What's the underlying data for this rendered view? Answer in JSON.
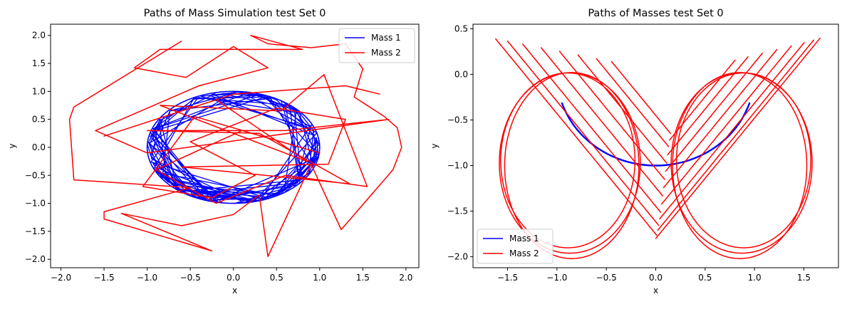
{
  "chart_data": [
    {
      "type": "line",
      "title": "Paths of Mass Simulation test Set 0",
      "xlabel": "x",
      "ylabel": "y",
      "xlim": [
        -2.12,
        2.15
      ],
      "ylim": [
        -2.15,
        2.2
      ],
      "xticks": [
        "-2.0",
        "-1.5",
        "-1.0",
        "-0.5",
        "0.0",
        "0.5",
        "1.0",
        "1.5",
        "2.0"
      ],
      "yticks": [
        "-2.0",
        "-1.5",
        "-1.0",
        "-0.5",
        "0.0",
        "0.5",
        "1.0",
        "1.5",
        "2.0"
      ],
      "legend": "top-right",
      "grid": false,
      "series": [
        {
          "name": "Mass 1",
          "color": "#0000ff",
          "style": "chaotic-unit-circle",
          "points": [
            [
              0,
              1
            ],
            [
              0.98,
              0.2
            ],
            [
              0.87,
              -0.5
            ],
            [
              0,
              -1
            ],
            [
              -0.87,
              -0.5
            ],
            [
              -0.98,
              0.2
            ],
            [
              0,
              1
            ],
            [
              0.6,
              -0.8
            ],
            [
              -0.95,
              0.3
            ],
            [
              0.95,
              0.3
            ],
            [
              -0.6,
              -0.8
            ],
            [
              0,
              1
            ]
          ]
        },
        {
          "name": "Mass 2",
          "color": "#ff0000",
          "style": "chaotic",
          "points": [
            [
              -0.6,
              1.9
            ],
            [
              -1.85,
              0.72
            ],
            [
              -1.9,
              0.5
            ],
            [
              -1.85,
              -0.58
            ],
            [
              -0.5,
              -0.72
            ],
            [
              -1.5,
              -1.15
            ],
            [
              -1.5,
              -1.28
            ],
            [
              -0.25,
              -1.85
            ],
            [
              -1.3,
              -1.18
            ],
            [
              -0.6,
              -1.4
            ],
            [
              0.0,
              -1.2
            ],
            [
              0.3,
              -0.85
            ],
            [
              0.4,
              -1.95
            ],
            [
              0.9,
              -0.3
            ],
            [
              1.25,
              -1.47
            ],
            [
              1.85,
              -0.4
            ],
            [
              1.95,
              0.0
            ],
            [
              1.9,
              0.35
            ],
            [
              1.75,
              0.55
            ],
            [
              1.4,
              0.9
            ],
            [
              1.5,
              1.4
            ],
            [
              1.3,
              1.85
            ],
            [
              0.9,
              1.78
            ],
            [
              0.4,
              1.85
            ],
            [
              0.2,
              2.0
            ],
            [
              0.8,
              1.75
            ],
            [
              -0.85,
              1.75
            ],
            [
              -1.15,
              1.42
            ],
            [
              -0.55,
              1.25
            ],
            [
              0.0,
              1.8
            ],
            [
              0.4,
              1.42
            ],
            [
              -0.4,
              1.1
            ],
            [
              -1.6,
              0.3
            ],
            [
              -1.0,
              -0.1
            ],
            [
              1.8,
              0.5
            ],
            [
              0.6,
              0.3
            ],
            [
              -1.0,
              0.3
            ],
            [
              0.3,
              0.25
            ],
            [
              1.35,
              -0.65
            ],
            [
              -0.6,
              -0.35
            ],
            [
              1.1,
              -0.3
            ],
            [
              1.3,
              0.5
            ],
            [
              0.5,
              0.7
            ],
            [
              -0.5,
              0.1
            ],
            [
              0.25,
              -0.5
            ],
            [
              -0.25,
              -0.9
            ],
            [
              -1.05,
              -0.7
            ],
            [
              -0.45,
              0.55
            ],
            [
              1.0,
              -0.1
            ],
            [
              0.1,
              0.3
            ],
            [
              -0.9,
              -0.4
            ],
            [
              -0.2,
              -1.0
            ],
            [
              0.6,
              -0.5
            ],
            [
              1.55,
              -0.7
            ],
            [
              1.05,
              1.3
            ],
            [
              0.55,
              0.65
            ],
            [
              -0.85,
              0.75
            ],
            [
              0.85,
              -0.25
            ],
            [
              -0.2,
              0.85
            ],
            [
              -1.5,
              0.2
            ],
            [
              0.0,
              0.95
            ],
            [
              1.3,
              1.1
            ],
            [
              1.7,
              0.95
            ]
          ]
        }
      ]
    },
    {
      "type": "line",
      "title": "Paths of Masses test Set 0",
      "xlabel": "x",
      "ylabel": "y",
      "xlim": [
        -1.85,
        1.85
      ],
      "ylim": [
        -2.12,
        0.55
      ],
      "xticks": [
        "-1.5",
        "-1.0",
        "-0.5",
        "0.0",
        "0.5",
        "1.0",
        "1.5"
      ],
      "yticks": [
        "-2.0",
        "-1.5",
        "-1.0",
        "-0.5",
        "0.0",
        "0.5"
      ],
      "legend": "bottom-left",
      "grid": false,
      "series": [
        {
          "name": "Mass 1",
          "color": "#0000ff",
          "style": "arc",
          "angle_range_deg": [
            -72,
            72
          ]
        },
        {
          "name": "Mass 2",
          "color": "#ff0000",
          "style": "lobes",
          "lobe_sizes": [
            1.0,
            0.98,
            0.95,
            0.92,
            0.88,
            0.84,
            0.79,
            0.74,
            0.69,
            0.64,
            0.59,
            0.54,
            0.49,
            0.44,
            0.4,
            0.36
          ]
        }
      ]
    }
  ]
}
